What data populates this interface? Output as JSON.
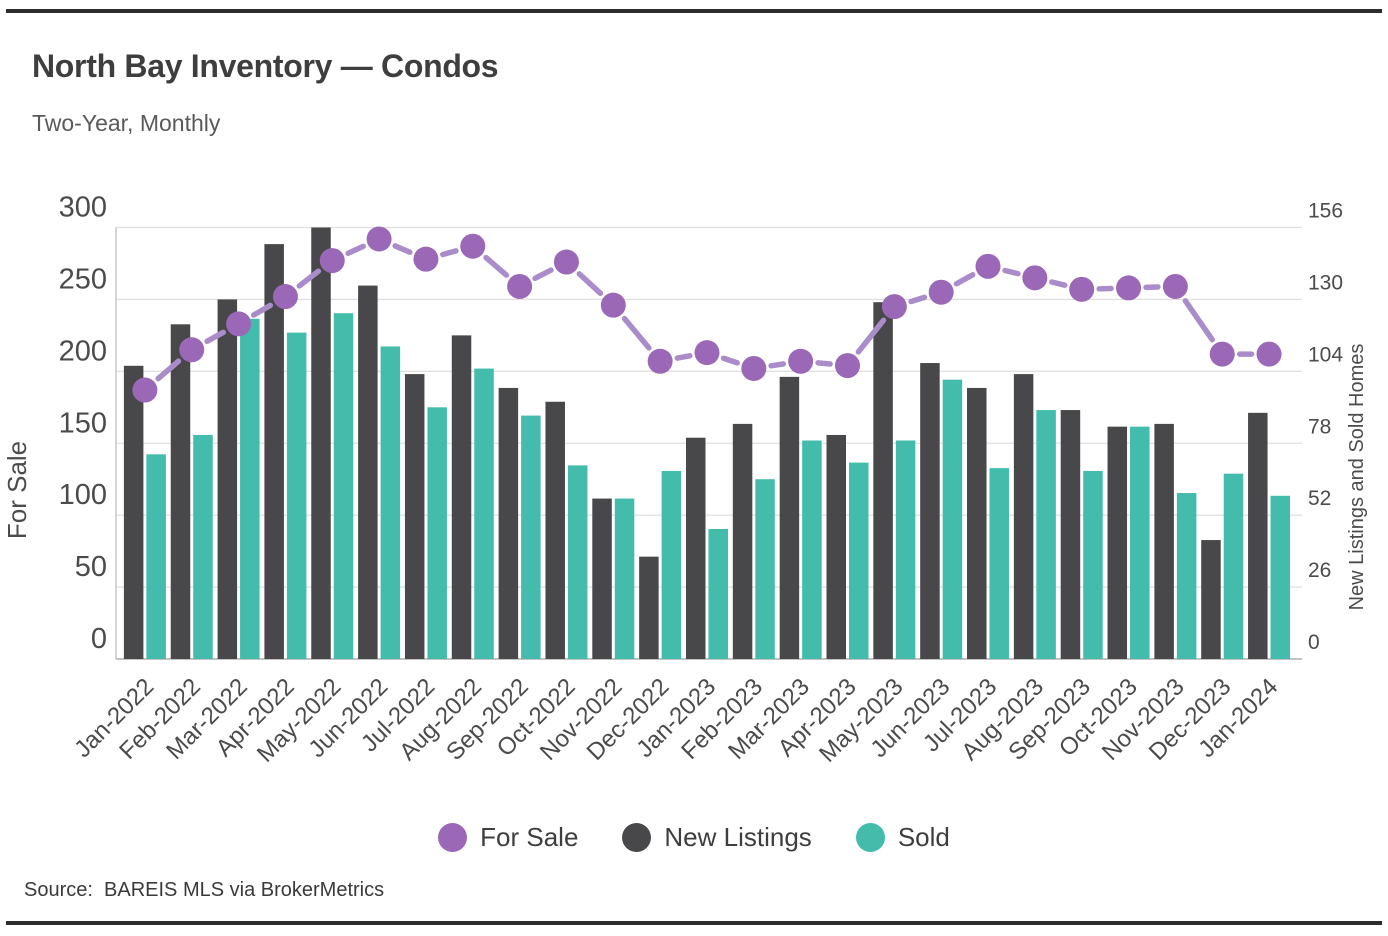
{
  "header": {
    "title": "North Bay Inventory — Condos",
    "subtitle": "Two-Year, Monthly"
  },
  "footer": {
    "source": "Source:  BAREIS MLS via BrokerMetrics"
  },
  "chart_data": {
    "type": "bar",
    "subtype": "combo-bar-line-dual-axis",
    "title": "North Bay Inventory — Condos",
    "subtitle": "Two-Year, Monthly",
    "grid": true,
    "legend_position": "bottom",
    "categories": [
      "Jan-2022",
      "Feb-2022",
      "Mar-2022",
      "Apr-2022",
      "May-2022",
      "Jun-2022",
      "Jul-2022",
      "Aug-2022",
      "Sep-2022",
      "Oct-2022",
      "Nov-2022",
      "Dec-2022",
      "Jan-2023",
      "Feb-2023",
      "Mar-2023",
      "Apr-2023",
      "May-2023",
      "Jun-2023",
      "Jul-2023",
      "Aug-2023",
      "Sep-2023",
      "Oct-2023",
      "Nov-2023",
      "Dec-2023",
      "Jan-2024"
    ],
    "series": [
      {
        "name": "For Sale",
        "type": "line",
        "axis": "left",
        "marker_color": "#9a68b6",
        "line_color": "#aa8cca",
        "values": [
          187,
          215,
          233,
          252,
          277,
          292,
          278,
          287,
          259,
          276,
          246,
          207,
          213,
          202,
          207,
          204,
          245,
          255,
          273,
          265,
          257,
          258,
          259,
          212,
          212
        ]
      },
      {
        "name": "New Listings",
        "type": "bar",
        "axis": "right",
        "color": "#48484a",
        "values": [
          106,
          121,
          130,
          150,
          156,
          135,
          103,
          117,
          98,
          93,
          58,
          37,
          80,
          85,
          102,
          81,
          129,
          107,
          98,
          103,
          90,
          84,
          85,
          43,
          89
        ]
      },
      {
        "name": "Sold",
        "type": "bar",
        "axis": "right",
        "color": "#43bcab",
        "values": [
          74,
          81,
          123,
          118,
          125,
          113,
          91,
          105,
          88,
          70,
          58,
          68,
          47,
          65,
          79,
          71,
          79,
          101,
          69,
          90,
          68,
          84,
          60,
          67,
          59
        ]
      }
    ],
    "left_axis": {
      "title": "For Sale",
      "min": 0,
      "max": 300,
      "ticks": [
        0,
        50,
        100,
        150,
        200,
        250,
        300
      ]
    },
    "right_axis": {
      "title": "New Listings and Sold Homes",
      "min": 0,
      "max": 156,
      "ticks": [
        0,
        26,
        52,
        78,
        104,
        130,
        156
      ]
    }
  }
}
